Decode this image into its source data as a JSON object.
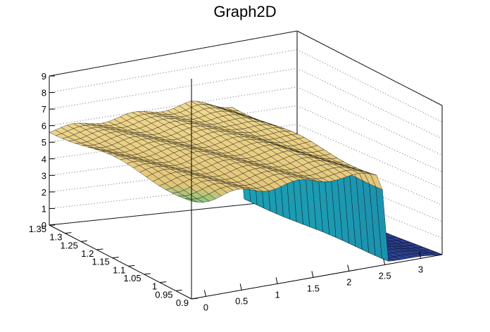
{
  "chart_data": {
    "type": "surface",
    "title": "Graph2D",
    "xlabel": "",
    "ylabel": "",
    "zlabel": "",
    "xlim": [
      -0.2,
      3.3
    ],
    "ylim": [
      0.9,
      1.35
    ],
    "zlim": [
      0,
      9
    ],
    "grid": true,
    "x_ticks": [
      "0",
      "0.5",
      "1",
      "1.5",
      "2",
      "2.5",
      "3"
    ],
    "y_ticks": [
      "0.9",
      "0.95",
      "1",
      "1.05",
      "1.1",
      "1.15",
      "1.2",
      "1.25",
      "1.3",
      "1.35"
    ],
    "z_ticks": [
      "0",
      "1",
      "2",
      "3",
      "4",
      "5",
      "6",
      "7",
      "8",
      "9"
    ],
    "surface_profile": {
      "x_breaks": [
        -0.2,
        1.8,
        2.45,
        2.55,
        3.3
      ],
      "z_at_y_min": [
        4.0,
        4.8,
        4.9,
        0.2,
        0.0
      ],
      "z_at_y_max": [
        5.7,
        6.0,
        5.5,
        0.3,
        0.0
      ]
    },
    "colors": {
      "low": "#2c3e92",
      "mid": "#1b9fb3",
      "midhigh": "#7cc47b",
      "high": "#e3c67a",
      "top": "#f6e29a"
    }
  }
}
